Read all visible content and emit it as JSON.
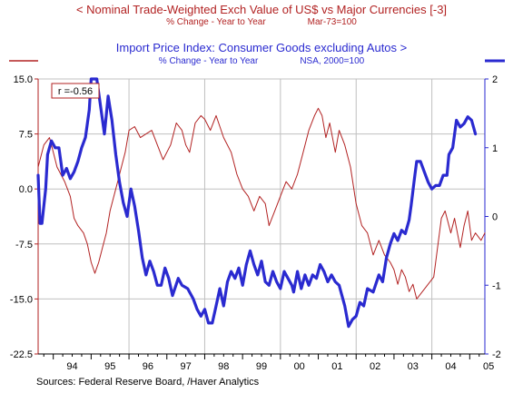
{
  "header": {
    "series1_title": "<  Nominal Trade-Weighted Exch Value of US$ vs Major Currencies [-3]",
    "series1_units": "% Change - Year to Year",
    "series1_base": "Mar-73=100",
    "series2_title": "Import Price Index: Consumer Goods excluding Autos  >",
    "series2_units": "% Change - Year to Year",
    "series2_base": "NSA, 2000=100"
  },
  "source": "Sources:  Federal Reserve Board,  /Haver Analytics",
  "annotation": "r =-0.56",
  "colors": {
    "red": "#b22222",
    "blue": "#2a2ad0",
    "grid": "#c0c0c0",
    "axis": "#000000"
  },
  "chart_data": {
    "type": "line",
    "x_tick_labels": [
      "94",
      "95",
      "96",
      "97",
      "98",
      "99",
      "00",
      "01",
      "02",
      "03",
      "04",
      "05"
    ],
    "xlim": [
      1993.6,
      2005.4
    ],
    "y_left": {
      "lim": [
        -22.5,
        15.0
      ],
      "ticks": [
        "15.0",
        "7.5",
        "0.0",
        "-7.5",
        "-15.0",
        "-22.5"
      ]
    },
    "y_right": {
      "lim": [
        -2,
        2
      ],
      "ticks": [
        "2",
        "1",
        "0",
        "-1",
        "-2"
      ]
    },
    "grid": true,
    "series": [
      {
        "axis": "left",
        "color": "#b22222",
        "points": [
          [
            1993.6,
            3
          ],
          [
            1993.75,
            6
          ],
          [
            1993.9,
            7
          ],
          [
            1994.0,
            5
          ],
          [
            1994.1,
            3
          ],
          [
            1994.2,
            2
          ],
          [
            1994.3,
            1
          ],
          [
            1994.45,
            -1
          ],
          [
            1994.55,
            -4
          ],
          [
            1994.65,
            -5
          ],
          [
            1994.8,
            -6
          ],
          [
            1994.9,
            -7.5
          ],
          [
            1995.0,
            -10
          ],
          [
            1995.1,
            -11.5
          ],
          [
            1995.2,
            -10
          ],
          [
            1995.3,
            -8
          ],
          [
            1995.4,
            -6
          ],
          [
            1995.5,
            -3
          ],
          [
            1995.6,
            -1
          ],
          [
            1995.7,
            1
          ],
          [
            1995.8,
            3
          ],
          [
            1995.9,
            5
          ],
          [
            1996.0,
            8
          ],
          [
            1996.15,
            8.5
          ],
          [
            1996.3,
            7
          ],
          [
            1996.45,
            7.5
          ],
          [
            1996.6,
            8
          ],
          [
            1996.75,
            6
          ],
          [
            1996.9,
            4
          ],
          [
            1997.1,
            6
          ],
          [
            1997.25,
            9
          ],
          [
            1997.4,
            8
          ],
          [
            1997.5,
            6
          ],
          [
            1997.6,
            5
          ],
          [
            1997.75,
            9
          ],
          [
            1997.9,
            10
          ],
          [
            1998.0,
            9.5
          ],
          [
            1998.15,
            8
          ],
          [
            1998.3,
            10
          ],
          [
            1998.5,
            7
          ],
          [
            1998.7,
            5
          ],
          [
            1998.85,
            2
          ],
          [
            1999.0,
            0
          ],
          [
            1999.15,
            -1
          ],
          [
            1999.3,
            -3
          ],
          [
            1999.45,
            -1
          ],
          [
            1999.6,
            -2
          ],
          [
            1999.7,
            -5
          ],
          [
            1999.85,
            -3
          ],
          [
            2000.0,
            -1
          ],
          [
            2000.15,
            1
          ],
          [
            2000.3,
            0
          ],
          [
            2000.45,
            2
          ],
          [
            2000.6,
            5
          ],
          [
            2000.75,
            8
          ],
          [
            2000.9,
            10
          ],
          [
            2001.0,
            11
          ],
          [
            2001.1,
            10
          ],
          [
            2001.2,
            7
          ],
          [
            2001.3,
            9
          ],
          [
            2001.45,
            5
          ],
          [
            2001.55,
            8
          ],
          [
            2001.7,
            6
          ],
          [
            2001.85,
            3
          ],
          [
            2002.0,
            -2
          ],
          [
            2002.15,
            -5
          ],
          [
            2002.3,
            -6
          ],
          [
            2002.45,
            -9
          ],
          [
            2002.6,
            -7
          ],
          [
            2002.75,
            -9
          ],
          [
            2002.9,
            -10
          ],
          [
            2003.0,
            -11
          ],
          [
            2003.1,
            -13
          ],
          [
            2003.2,
            -11
          ],
          [
            2003.3,
            -12
          ],
          [
            2003.4,
            -14
          ],
          [
            2003.5,
            -13
          ],
          [
            2003.6,
            -15
          ],
          [
            2003.75,
            -14
          ],
          [
            2003.9,
            -13
          ],
          [
            2004.05,
            -12
          ],
          [
            2004.15,
            -8
          ],
          [
            2004.25,
            -4
          ],
          [
            2004.35,
            -3
          ],
          [
            2004.5,
            -6
          ],
          [
            2004.6,
            -4
          ],
          [
            2004.75,
            -8
          ],
          [
            2004.85,
            -5
          ],
          [
            2004.95,
            -3
          ],
          [
            2005.05,
            -7
          ],
          [
            2005.15,
            -6
          ],
          [
            2005.3,
            -7
          ],
          [
            2005.4,
            -6
          ]
        ]
      },
      {
        "axis": "right",
        "color": "#2a2ad0",
        "points": [
          [
            1993.6,
            0.6
          ],
          [
            1993.65,
            -0.1
          ],
          [
            1993.7,
            -0.1
          ],
          [
            1993.8,
            0.4
          ],
          [
            1993.85,
            0.9
          ],
          [
            1993.95,
            1.1
          ],
          [
            1994.05,
            1.0
          ],
          [
            1994.15,
            1.0
          ],
          [
            1994.25,
            0.6
          ],
          [
            1994.35,
            0.7
          ],
          [
            1994.45,
            0.55
          ],
          [
            1994.55,
            0.65
          ],
          [
            1994.65,
            0.8
          ],
          [
            1994.75,
            1.0
          ],
          [
            1994.85,
            1.15
          ],
          [
            1994.95,
            1.55
          ],
          [
            1995.0,
            2.0
          ],
          [
            1995.15,
            2.0
          ],
          [
            1995.25,
            1.6
          ],
          [
            1995.35,
            1.2
          ],
          [
            1995.45,
            1.75
          ],
          [
            1995.55,
            1.4
          ],
          [
            1995.65,
            0.9
          ],
          [
            1995.75,
            0.5
          ],
          [
            1995.85,
            0.2
          ],
          [
            1995.95,
            0.0
          ],
          [
            1996.05,
            0.4
          ],
          [
            1996.15,
            0.15
          ],
          [
            1996.25,
            -0.2
          ],
          [
            1996.35,
            -0.6
          ],
          [
            1996.45,
            -0.85
          ],
          [
            1996.55,
            -0.65
          ],
          [
            1996.65,
            -0.8
          ],
          [
            1996.75,
            -1.0
          ],
          [
            1996.85,
            -1.0
          ],
          [
            1996.95,
            -0.75
          ],
          [
            1997.05,
            -0.9
          ],
          [
            1997.15,
            -1.15
          ],
          [
            1997.3,
            -0.9
          ],
          [
            1997.4,
            -1.0
          ],
          [
            1997.55,
            -1.05
          ],
          [
            1997.7,
            -1.2
          ],
          [
            1997.8,
            -1.35
          ],
          [
            1997.9,
            -1.45
          ],
          [
            1998.0,
            -1.35
          ],
          [
            1998.1,
            -1.55
          ],
          [
            1998.2,
            -1.55
          ],
          [
            1998.3,
            -1.3
          ],
          [
            1998.4,
            -1.05
          ],
          [
            1998.5,
            -1.3
          ],
          [
            1998.6,
            -0.95
          ],
          [
            1998.7,
            -0.8
          ],
          [
            1998.8,
            -0.9
          ],
          [
            1998.9,
            -0.75
          ],
          [
            1999.0,
            -1.0
          ],
          [
            1999.1,
            -0.7
          ],
          [
            1999.2,
            -0.5
          ],
          [
            1999.3,
            -0.7
          ],
          [
            1999.4,
            -0.85
          ],
          [
            1999.5,
            -0.65
          ],
          [
            1999.6,
            -0.95
          ],
          [
            1999.7,
            -1.0
          ],
          [
            1999.8,
            -0.8
          ],
          [
            1999.9,
            -0.95
          ],
          [
            2000.0,
            -1.05
          ],
          [
            2000.1,
            -0.8
          ],
          [
            2000.2,
            -0.9
          ],
          [
            2000.3,
            -1.0
          ],
          [
            2000.35,
            -1.1
          ],
          [
            2000.45,
            -0.8
          ],
          [
            2000.55,
            -1.05
          ],
          [
            2000.65,
            -0.85
          ],
          [
            2000.75,
            -1.0
          ],
          [
            2000.85,
            -0.85
          ],
          [
            2000.95,
            -0.9
          ],
          [
            2001.05,
            -0.7
          ],
          [
            2001.15,
            -0.8
          ],
          [
            2001.25,
            -0.95
          ],
          [
            2001.35,
            -0.85
          ],
          [
            2001.45,
            -0.95
          ],
          [
            2001.55,
            -1.0
          ],
          [
            2001.7,
            -1.3
          ],
          [
            2001.8,
            -1.6
          ],
          [
            2001.9,
            -1.5
          ],
          [
            2002.0,
            -1.45
          ],
          [
            2002.1,
            -1.25
          ],
          [
            2002.2,
            -1.3
          ],
          [
            2002.3,
            -1.05
          ],
          [
            2002.45,
            -1.1
          ],
          [
            2002.6,
            -0.85
          ],
          [
            2002.7,
            -0.95
          ],
          [
            2002.8,
            -0.6
          ],
          [
            2002.9,
            -0.4
          ],
          [
            2003.0,
            -0.25
          ],
          [
            2003.1,
            -0.35
          ],
          [
            2003.2,
            -0.2
          ],
          [
            2003.3,
            -0.25
          ],
          [
            2003.4,
            -0.05
          ],
          [
            2003.45,
            0.15
          ],
          [
            2003.55,
            0.6
          ],
          [
            2003.6,
            0.8
          ],
          [
            2003.7,
            0.8
          ],
          [
            2003.8,
            0.65
          ],
          [
            2003.9,
            0.5
          ],
          [
            2004.0,
            0.4
          ],
          [
            2004.1,
            0.45
          ],
          [
            2004.2,
            0.45
          ],
          [
            2004.3,
            0.6
          ],
          [
            2004.4,
            0.6
          ],
          [
            2004.45,
            0.9
          ],
          [
            2004.55,
            1.0
          ],
          [
            2004.65,
            1.4
          ],
          [
            2004.75,
            1.3
          ],
          [
            2004.85,
            1.35
          ],
          [
            2004.95,
            1.45
          ],
          [
            2005.05,
            1.4
          ],
          [
            2005.15,
            1.2
          ]
        ]
      }
    ]
  }
}
